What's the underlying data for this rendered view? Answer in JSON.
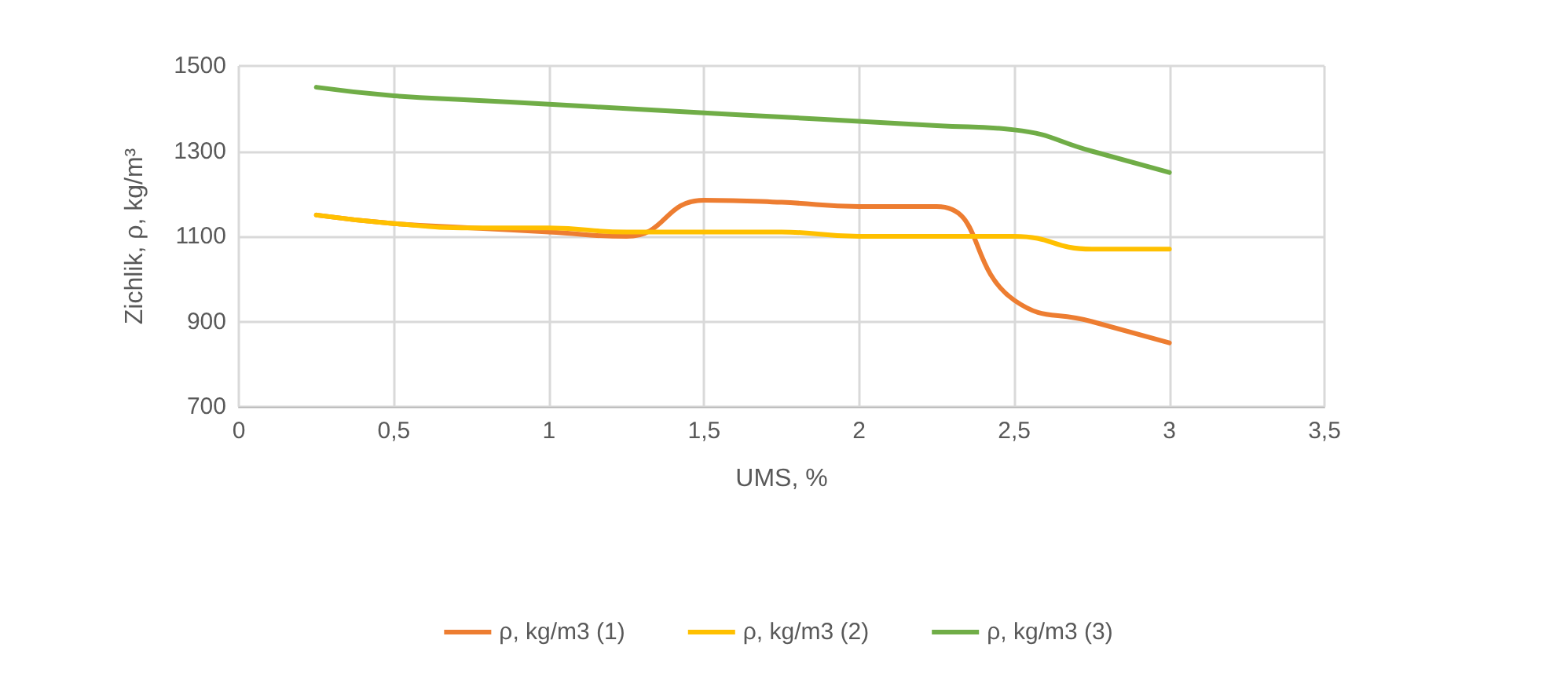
{
  "chart_data": {
    "type": "line",
    "xlabel": "UMS, %",
    "ylabel": "Zichlik, ρ, kg/m³",
    "x": [
      0.25,
      0.5,
      0.75,
      1,
      1.25,
      1.5,
      1.75,
      2,
      2.25,
      2.5,
      2.75,
      3
    ],
    "series": [
      {
        "name": "ρ, kg/m3 (1)",
        "color": "#ed7d31",
        "values": [
          1150,
          1130,
          1120,
          1110,
          1100,
          1185,
          1180,
          1170,
          1170,
          950,
          900,
          850
        ]
      },
      {
        "name": "ρ, kg/m3 (2)",
        "color": "#ffc000",
        "values": [
          1150,
          1130,
          1120,
          1120,
          1110,
          1110,
          1110,
          1100,
          1100,
          1100,
          1070,
          1070
        ]
      },
      {
        "name": "ρ, kg/m3 (3)",
        "color": "#70ad47",
        "values": [
          1450,
          1430,
          1420,
          1410,
          1400,
          1390,
          1380,
          1370,
          1360,
          1350,
          1300,
          1250
        ]
      }
    ],
    "xlim": [
      0,
      3.5
    ],
    "xticks": [
      0,
      {
        "value": 0.5,
        "label": "0,5"
      },
      1,
      {
        "value": 1.5,
        "label": "1,5"
      },
      2,
      {
        "value": 2.5,
        "label": "2,5"
      },
      3,
      {
        "value": 3.5,
        "label": "3,5"
      }
    ],
    "ylim": [
      700,
      1500
    ],
    "yticks": [
      700,
      900,
      1100,
      1300,
      1500
    ],
    "grid": true,
    "legend": "bottom",
    "marker": "none",
    "line_style": "solid"
  }
}
